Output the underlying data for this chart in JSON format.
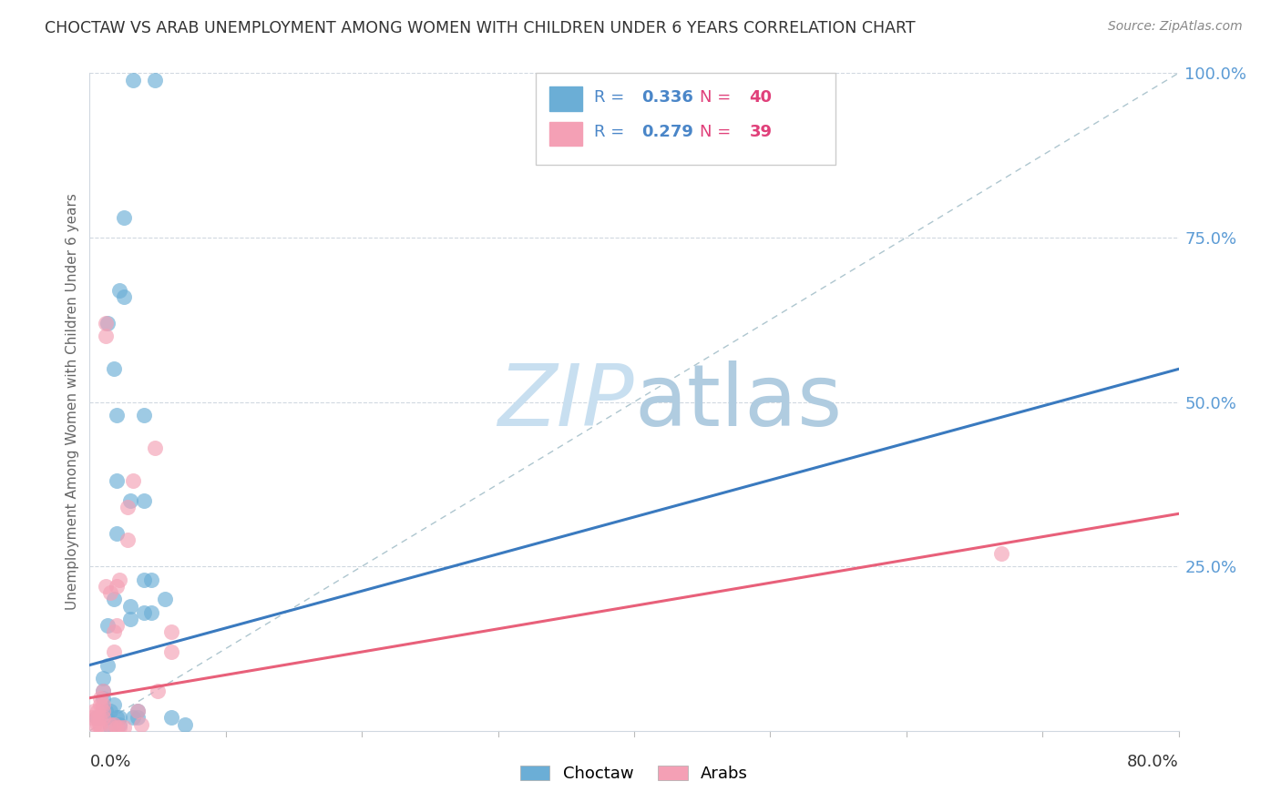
{
  "title": "CHOCTAW VS ARAB UNEMPLOYMENT AMONG WOMEN WITH CHILDREN UNDER 6 YEARS CORRELATION CHART",
  "source": "Source: ZipAtlas.com",
  "ylabel": "Unemployment Among Women with Children Under 6 years",
  "right_yticks": [
    "100.0%",
    "75.0%",
    "50.0%",
    "25.0%"
  ],
  "right_ytick_vals": [
    100.0,
    75.0,
    50.0,
    25.0
  ],
  "watermark_zip": "ZIP",
  "watermark_atlas": "atlas",
  "choctaw_scatter": [
    [
      0.5,
      2.0
    ],
    [
      1.0,
      5.0
    ],
    [
      1.0,
      6.0
    ],
    [
      1.0,
      8.0
    ],
    [
      1.2,
      2.0
    ],
    [
      1.2,
      3.0
    ],
    [
      1.3,
      10.0
    ],
    [
      1.3,
      16.0
    ],
    [
      1.3,
      62.0
    ],
    [
      1.5,
      0.5
    ],
    [
      1.5,
      3.0
    ],
    [
      1.8,
      55.0
    ],
    [
      1.8,
      20.0
    ],
    [
      1.8,
      4.0
    ],
    [
      2.0,
      48.0
    ],
    [
      2.0,
      38.0
    ],
    [
      2.0,
      30.0
    ],
    [
      2.0,
      2.0
    ],
    [
      2.2,
      67.0
    ],
    [
      2.2,
      2.0
    ],
    [
      2.2,
      1.0
    ],
    [
      2.5,
      78.0
    ],
    [
      2.5,
      66.0
    ],
    [
      3.0,
      35.0
    ],
    [
      3.0,
      19.0
    ],
    [
      3.0,
      17.0
    ],
    [
      3.2,
      99.0
    ],
    [
      3.2,
      2.0
    ],
    [
      3.5,
      3.0
    ],
    [
      3.5,
      2.0
    ],
    [
      4.0,
      48.0
    ],
    [
      4.0,
      35.0
    ],
    [
      4.0,
      23.0
    ],
    [
      4.0,
      18.0
    ],
    [
      4.5,
      23.0
    ],
    [
      4.5,
      18.0
    ],
    [
      4.8,
      99.0
    ],
    [
      5.5,
      20.0
    ],
    [
      6.0,
      2.0
    ],
    [
      7.0,
      1.0
    ]
  ],
  "arab_scatter": [
    [
      0.2,
      2.0
    ],
    [
      0.3,
      3.0
    ],
    [
      0.4,
      1.0
    ],
    [
      0.5,
      2.0
    ],
    [
      0.6,
      1.0
    ],
    [
      0.6,
      3.0
    ],
    [
      0.7,
      1.0
    ],
    [
      0.7,
      2.0
    ],
    [
      0.8,
      4.0
    ],
    [
      0.8,
      5.0
    ],
    [
      0.8,
      0.5
    ],
    [
      1.0,
      2.0
    ],
    [
      1.0,
      3.0
    ],
    [
      1.0,
      4.0
    ],
    [
      1.0,
      6.0
    ],
    [
      1.2,
      22.0
    ],
    [
      1.2,
      60.0
    ],
    [
      1.2,
      62.0
    ],
    [
      1.5,
      21.0
    ],
    [
      1.5,
      1.0
    ],
    [
      1.8,
      15.0
    ],
    [
      1.8,
      12.0
    ],
    [
      1.8,
      1.0
    ],
    [
      2.0,
      22.0
    ],
    [
      2.0,
      16.0
    ],
    [
      2.0,
      0.5
    ],
    [
      2.2,
      23.0
    ],
    [
      2.2,
      0.5
    ],
    [
      2.5,
      0.5
    ],
    [
      2.8,
      34.0
    ],
    [
      2.8,
      29.0
    ],
    [
      3.2,
      38.0
    ],
    [
      3.5,
      3.0
    ],
    [
      3.8,
      1.0
    ],
    [
      4.8,
      43.0
    ],
    [
      5.0,
      6.0
    ],
    [
      6.0,
      15.0
    ],
    [
      6.0,
      12.0
    ],
    [
      67.0,
      27.0
    ]
  ],
  "choctaw_line": {
    "x": [
      0.0,
      80.0
    ],
    "y": [
      10.0,
      55.0
    ]
  },
  "arab_line": {
    "x": [
      0.0,
      80.0
    ],
    "y": [
      5.0,
      33.0
    ]
  },
  "diagonal_line": {
    "x": [
      0.0,
      80.0
    ],
    "y": [
      0.0,
      100.0
    ]
  },
  "xlim": [
    0.0,
    80.0
  ],
  "ylim": [
    0.0,
    100.0
  ],
  "title_color": "#333333",
  "source_color": "#888888",
  "choctaw_color": "#6baed6",
  "arab_color": "#f4a0b5",
  "right_axis_color": "#5b9bd5",
  "diagonal_color": "#aec6cf",
  "watermark_zip_color": "#c8dff0",
  "watermark_atlas_color": "#b0cce0",
  "legend_r_color": "#4a86c8",
  "legend_n_color": "#e0407a",
  "choctaw_line_color": "#3a7abf",
  "arab_line_color": "#e8607a",
  "grid_color": "#d0d8e0"
}
